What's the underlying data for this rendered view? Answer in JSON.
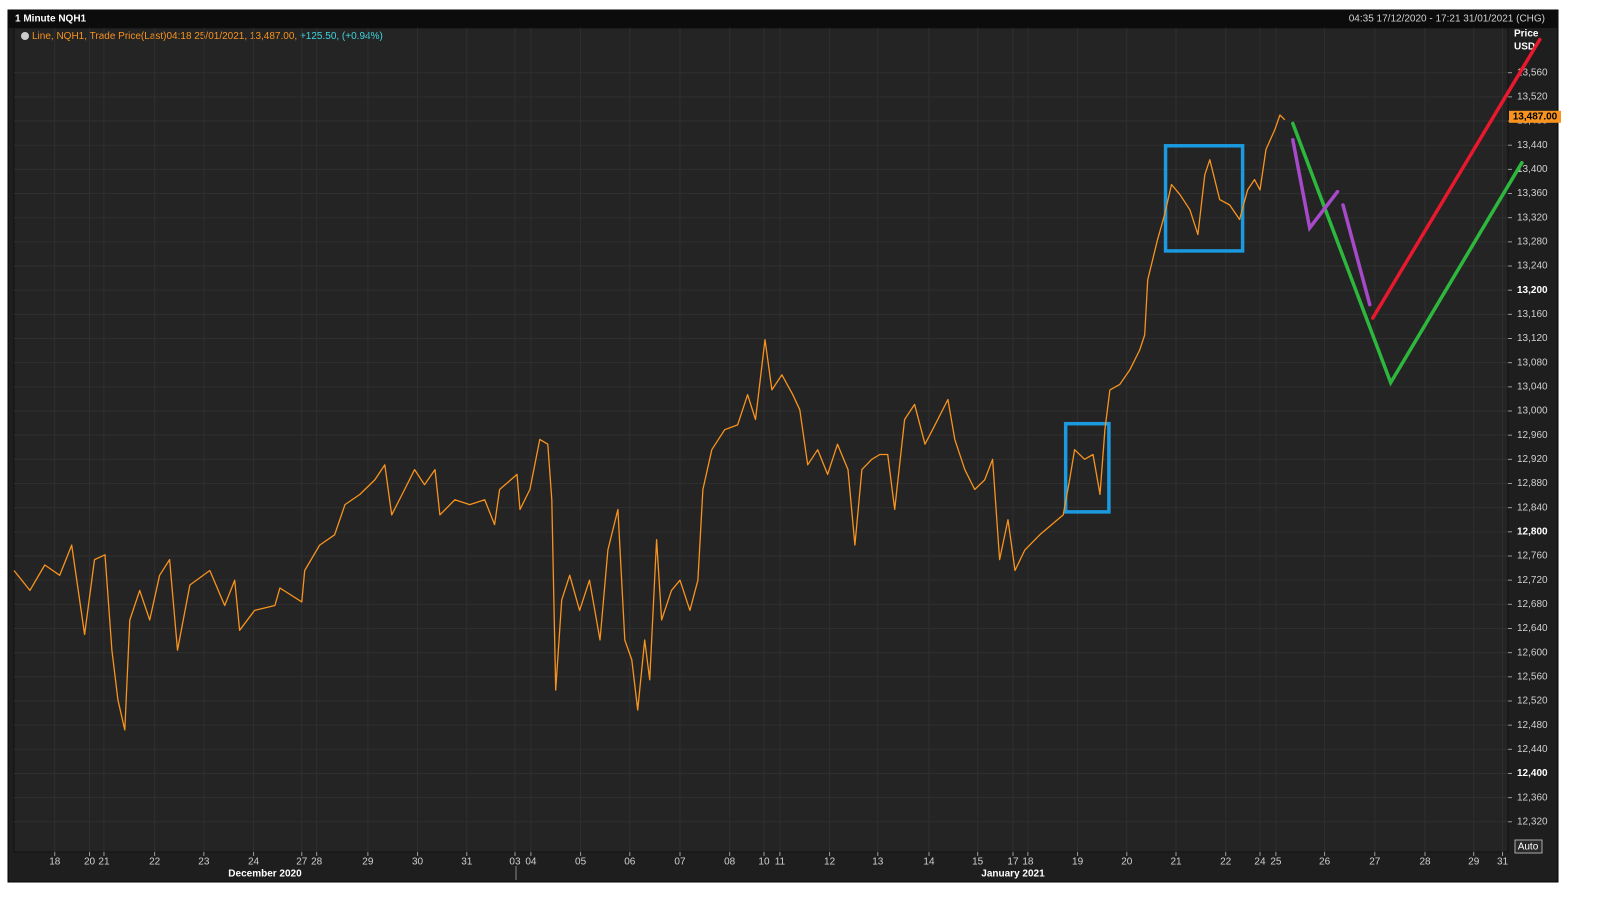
{
  "chart_data": {
    "type": "line",
    "title": "1 Minute NQH1",
    "time_range": "04:35 17/12/2020 - 17:21 31/01/2021 (CHG)",
    "legend_change": "+125.50, (+0.94%)",
    "legend_change_color": "#3fd6e0",
    "y_label": "Price",
    "y_unit": "USD",
    "auto_button": "Auto",
    "grid": true,
    "last_price": {
      "value": 13487,
      "label": "13,487.00"
    },
    "xlim": [
      -0.82,
      29.24
    ],
    "ylim": [
      12270,
      13634
    ],
    "xticks": [
      {
        "value": 0,
        "label": "18"
      },
      {
        "value": 0.7,
        "label": "20"
      },
      {
        "value": 0.99,
        "label": "21"
      },
      {
        "value": 2.01,
        "label": "22"
      },
      {
        "value": 3.0,
        "label": "23"
      },
      {
        "value": 4.0,
        "label": "24"
      },
      {
        "value": 4.97,
        "label": "27"
      },
      {
        "value": 5.27,
        "label": "28"
      },
      {
        "value": 6.3,
        "label": "29"
      },
      {
        "value": 7.3,
        "label": "30"
      },
      {
        "value": 8.29,
        "label": "31"
      },
      {
        "value": 9.26,
        "label": "03"
      },
      {
        "value": 9.58,
        "label": "04"
      },
      {
        "value": 10.58,
        "label": "05"
      },
      {
        "value": 11.57,
        "label": "06"
      },
      {
        "value": 12.58,
        "label": "07"
      },
      {
        "value": 13.58,
        "label": "08"
      },
      {
        "value": 14.27,
        "label": "10"
      },
      {
        "value": 14.59,
        "label": "11"
      },
      {
        "value": 15.59,
        "label": "12"
      },
      {
        "value": 16.56,
        "label": "13"
      },
      {
        "value": 17.59,
        "label": "14"
      },
      {
        "value": 18.57,
        "label": "15"
      },
      {
        "value": 19.28,
        "label": "17"
      },
      {
        "value": 19.58,
        "label": "18"
      },
      {
        "value": 20.58,
        "label": "19"
      },
      {
        "value": 21.57,
        "label": "20"
      },
      {
        "value": 22.56,
        "label": "21"
      },
      {
        "value": 23.56,
        "label": "22"
      },
      {
        "value": 24.25,
        "label": "24"
      },
      {
        "value": 24.57,
        "label": "25"
      },
      {
        "value": 25.55,
        "label": "26"
      },
      {
        "value": 26.56,
        "label": "27"
      },
      {
        "value": 27.57,
        "label": "28"
      },
      {
        "value": 28.55,
        "label": "29"
      },
      {
        "value": 29.13,
        "label": "31"
      }
    ],
    "x_groups": [
      {
        "value": 4.23,
        "label": "December 2020"
      },
      {
        "value": 19.28,
        "label": "January 2021"
      }
    ],
    "yticks": [
      {
        "value": 12320,
        "label": "12,320"
      },
      {
        "value": 12360,
        "label": "12,360"
      },
      {
        "value": 12400,
        "label": "12,400"
      },
      {
        "value": 12440,
        "label": "12,440"
      },
      {
        "value": 12480,
        "label": "12,480"
      },
      {
        "value": 12520,
        "label": "12,520"
      },
      {
        "value": 12560,
        "label": "12,560"
      },
      {
        "value": 12600,
        "label": "12,600"
      },
      {
        "value": 12640,
        "label": "12,640"
      },
      {
        "value": 12680,
        "label": "12,680"
      },
      {
        "value": 12720,
        "label": "12,720"
      },
      {
        "value": 12760,
        "label": "12,760"
      },
      {
        "value": 12800,
        "label": "12,800"
      },
      {
        "value": 12840,
        "label": "12,840"
      },
      {
        "value": 12880,
        "label": "12,880"
      },
      {
        "value": 12920,
        "label": "12,920"
      },
      {
        "value": 12960,
        "label": "12,960"
      },
      {
        "value": 13000,
        "label": "13,000"
      },
      {
        "value": 13040,
        "label": "13,040"
      },
      {
        "value": 13080,
        "label": "13,080"
      },
      {
        "value": 13120,
        "label": "13,120"
      },
      {
        "value": 13160,
        "label": "13,160"
      },
      {
        "value": 13200,
        "label": "13,200"
      },
      {
        "value": 13240,
        "label": "13,240"
      },
      {
        "value": 13280,
        "label": "13,280"
      },
      {
        "value": 13320,
        "label": "13,320"
      },
      {
        "value": 13360,
        "label": "13,360"
      },
      {
        "value": 13400,
        "label": "13,400"
      },
      {
        "value": 13440,
        "label": "13,440"
      },
      {
        "value": 13480,
        "label": "13,480"
      },
      {
        "value": 13520,
        "label": "13,520"
      },
      {
        "value": 13560,
        "label": "13,560"
      }
    ],
    "series": [
      {
        "name": "Line, NQH1, Trade Price(Last)04:18 25/01/2021, 13,487.00,",
        "color": "#f7931e",
        "x": [
          -0.82,
          -0.5,
          -0.2,
          0.1,
          0.34,
          0.6,
          0.8,
          1.01,
          1.15,
          1.27,
          1.41,
          1.51,
          1.71,
          1.91,
          2.11,
          2.31,
          2.47,
          2.72,
          3.12,
          3.42,
          3.62,
          3.72,
          4.02,
          4.43,
          4.53,
          4.97,
          5.03,
          5.33,
          5.63,
          5.84,
          6.14,
          6.44,
          6.64,
          6.78,
          7.04,
          7.24,
          7.44,
          7.65,
          7.75,
          8.05,
          8.35,
          8.65,
          8.85,
          8.95,
          9.3,
          9.36,
          9.56,
          9.76,
          9.92,
          10.0,
          10.08,
          10.2,
          10.36,
          10.56,
          10.76,
          10.97,
          11.13,
          11.33,
          11.47,
          11.61,
          11.73,
          11.87,
          11.97,
          12.11,
          12.21,
          12.41,
          12.58,
          12.78,
          12.94,
          13.04,
          13.22,
          13.48,
          13.74,
          13.94,
          14.1,
          14.29,
          14.43,
          14.63,
          14.85,
          14.99,
          15.15,
          15.35,
          15.55,
          15.75,
          15.96,
          16.1,
          16.24,
          16.44,
          16.6,
          16.76,
          16.9,
          17.1,
          17.3,
          17.51,
          17.71,
          17.97,
          18.11,
          18.31,
          18.51,
          18.71,
          18.87,
          19.01,
          19.18,
          19.32,
          19.52,
          19.82,
          20.13,
          20.29,
          20.42,
          20.52,
          20.72,
          20.89,
          21.03,
          21.13,
          21.23,
          21.43,
          21.63,
          21.83,
          21.93,
          21.99,
          22.19,
          22.33,
          22.47,
          22.64,
          22.84,
          23.0,
          23.14,
          23.24,
          23.44,
          23.64,
          23.84,
          24.0,
          24.14,
          24.25,
          24.37,
          24.55,
          24.65,
          24.75
        ],
        "values": [
          12736,
          12703,
          12745,
          12728,
          12778,
          12630,
          12754,
          12762,
          12604,
          12522,
          12472,
          12654,
          12703,
          12654,
          12728,
          12754,
          12604,
          12712,
          12736,
          12678,
          12720,
          12637,
          12670,
          12678,
          12707,
          12684,
          12736,
          12778,
          12795,
          12845,
          12862,
          12886,
          12911,
          12828,
          12870,
          12903,
          12878,
          12903,
          12828,
          12853,
          12845,
          12853,
          12812,
          12870,
          12895,
          12837,
          12870,
          12953,
          12945,
          12853,
          12538,
          12687,
          12728,
          12670,
          12720,
          12621,
          12770,
          12837,
          12621,
          12588,
          12505,
          12621,
          12555,
          12787,
          12654,
          12703,
          12720,
          12670,
          12720,
          12870,
          12936,
          12969,
          12977,
          13027,
          12986,
          13118,
          13035,
          13060,
          13027,
          13002,
          12911,
          12936,
          12895,
          12945,
          12903,
          12778,
          12903,
          12920,
          12928,
          12928,
          12837,
          12986,
          13011,
          12945,
          12977,
          13019,
          12953,
          12903,
          12870,
          12886,
          12920,
          12754,
          12820,
          12736,
          12770,
          12795,
          12817,
          12828,
          12886,
          12936,
          12920,
          12928,
          12862,
          12969,
          13035,
          13044,
          13068,
          13101,
          13126,
          13217,
          13284,
          13325,
          13375,
          13358,
          13333,
          13292,
          13391,
          13416,
          13350,
          13341,
          13317,
          13366,
          13383,
          13366,
          13433,
          13466,
          13490,
          13482
        ]
      }
    ],
    "drawings": [
      {
        "kind": "rect",
        "color": "#1b9ae0",
        "x": [
          20.34,
          21.21
        ],
        "y": [
          12833,
          12979
        ]
      },
      {
        "kind": "rect",
        "color": "#1b9ae0",
        "x": [
          22.35,
          23.9
        ],
        "y": [
          13265,
          13439
        ]
      },
      {
        "kind": "line",
        "color": "#2db83d",
        "x": [
          24.91,
          26.88,
          29.52
        ],
        "y": [
          13476,
          13047,
          13411
        ]
      },
      {
        "kind": "line",
        "color": "#e8192c",
        "x": [
          26.52,
          29.88
        ],
        "y": [
          13154,
          13615
        ]
      },
      {
        "kind": "line",
        "color": "#a64ac9",
        "x": [
          24.91,
          25.25,
          25.81,
          null,
          25.92,
          26.46
        ],
        "y": [
          13449,
          13303,
          13363,
          null,
          13341,
          13176
        ]
      }
    ]
  }
}
